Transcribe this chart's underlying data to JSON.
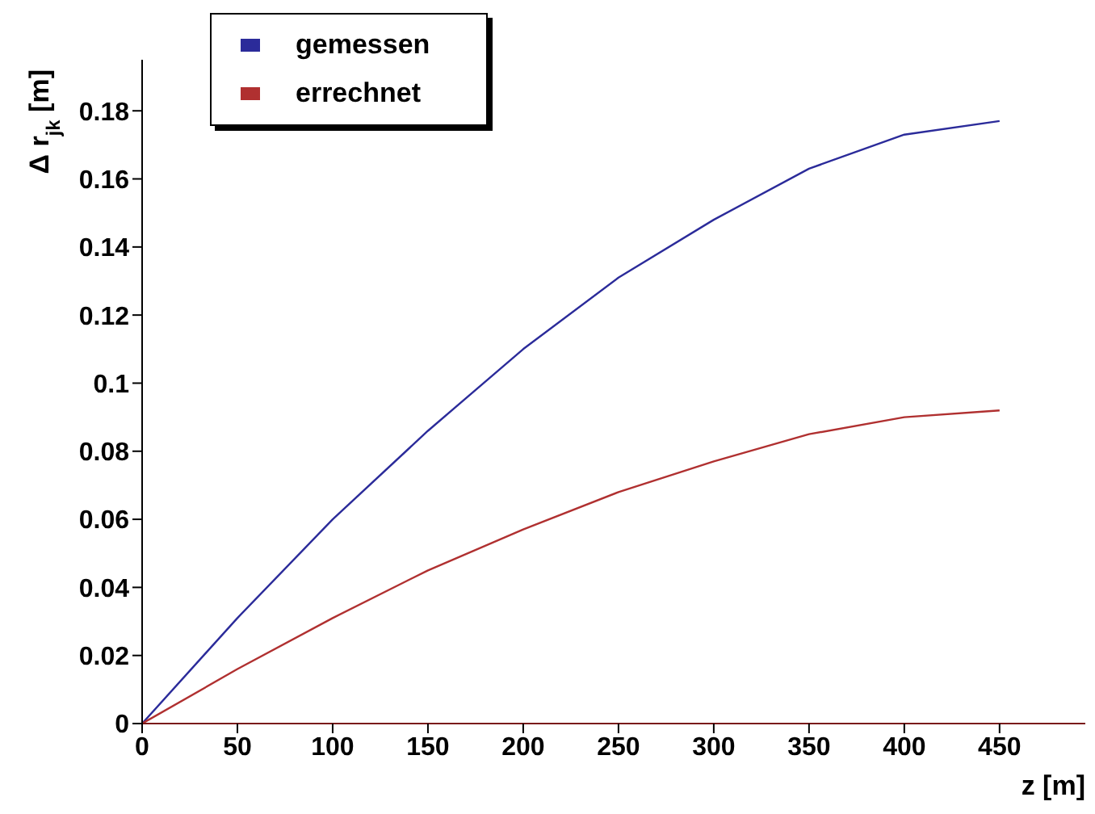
{
  "chart_data": {
    "type": "line",
    "xlabel": "z [m]",
    "ylabel": "Δ r$_{jk}$ [m]",
    "x": [
      0,
      50,
      100,
      150,
      200,
      250,
      300,
      350,
      400,
      450
    ],
    "series": [
      {
        "name": "gemessen",
        "color": "#2b2b9a",
        "values": [
          0,
          0.031,
          0.06,
          0.086,
          0.11,
          0.131,
          0.148,
          0.163,
          0.173,
          0.177
        ]
      },
      {
        "name": "errechnet",
        "color": "#b03030",
        "values": [
          0,
          0.016,
          0.031,
          0.045,
          0.057,
          0.068,
          0.077,
          0.085,
          0.09,
          0.092
        ]
      }
    ],
    "xlim": [
      0,
      495
    ],
    "xticks": [
      0,
      50,
      100,
      150,
      200,
      250,
      300,
      350,
      400,
      450
    ],
    "ylim": [
      0,
      0.195
    ],
    "yticks": [
      0,
      0.02,
      0.04,
      0.06,
      0.08,
      0.1,
      0.12,
      0.14,
      0.16,
      0.18
    ],
    "grid": false,
    "legend": "top left",
    "marker": "none",
    "line_style": "solid"
  }
}
